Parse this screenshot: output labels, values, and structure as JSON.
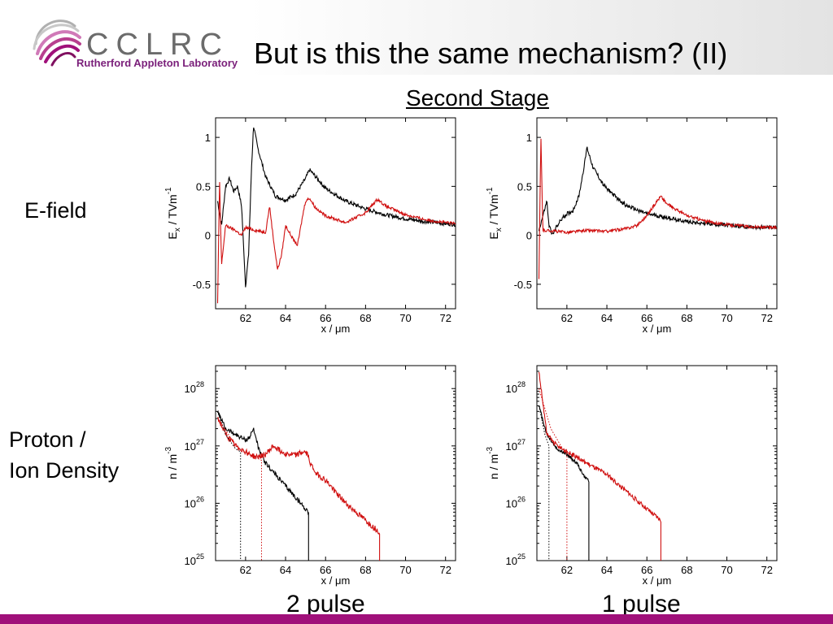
{
  "slide": {
    "title": "But is this the same mechanism? (II)",
    "subtitle": "Second Stage",
    "row_labels": {
      "efield": "E-field",
      "density_line1": "Proton /",
      "density_line2": "Ion Density"
    },
    "col_labels": {
      "left": "2 pulse",
      "right": "1 pulse"
    }
  },
  "logo": {
    "word": "CCLRC",
    "sub": "Rutherford Appleton Laboratory"
  },
  "colors": {
    "series_black": "#000000",
    "series_red": "#d01010",
    "brand": "#7a1f7a",
    "bar": "#a0107a"
  },
  "chart_data": [
    {
      "id": "efield-2pulse",
      "type": "line",
      "xlabel": "x / μm",
      "ylabel": "Ex / TVm-1",
      "xlim": [
        60.5,
        72.5
      ],
      "ylim": [
        -0.75,
        1.2
      ],
      "xticks": [
        62,
        64,
        66,
        68,
        70,
        72
      ],
      "yticks": [
        -0.5,
        0,
        0.5,
        1
      ],
      "series": [
        {
          "color": "black",
          "noise": 0.02,
          "points": [
            [
              60.6,
              0.35
            ],
            [
              60.8,
              0.1
            ],
            [
              61.0,
              0.5
            ],
            [
              61.2,
              0.58
            ],
            [
              61.4,
              0.45
            ],
            [
              61.6,
              0.5
            ],
            [
              61.8,
              0.3
            ],
            [
              62.0,
              -0.52
            ],
            [
              62.15,
              -0.2
            ],
            [
              62.3,
              0.7
            ],
            [
              62.4,
              1.12
            ],
            [
              62.6,
              0.9
            ],
            [
              63.0,
              0.6
            ],
            [
              63.5,
              0.4
            ],
            [
              64.0,
              0.36
            ],
            [
              64.5,
              0.42
            ],
            [
              65.0,
              0.58
            ],
            [
              65.2,
              0.67
            ],
            [
              65.5,
              0.6
            ],
            [
              66.0,
              0.48
            ],
            [
              67.0,
              0.35
            ],
            [
              68.0,
              0.27
            ],
            [
              69.0,
              0.21
            ],
            [
              70.0,
              0.17
            ],
            [
              71.0,
              0.14
            ],
            [
              72.0,
              0.12
            ],
            [
              72.5,
              0.11
            ]
          ]
        },
        {
          "color": "red",
          "noise": 0.015,
          "points": [
            [
              60.6,
              -0.7
            ],
            [
              60.7,
              0.55
            ],
            [
              60.8,
              -0.3
            ],
            [
              61.0,
              0.1
            ],
            [
              61.5,
              0.05
            ],
            [
              61.8,
              0.0
            ],
            [
              62.0,
              0.08
            ],
            [
              62.5,
              0.05
            ],
            [
              63.0,
              0.03
            ],
            [
              63.2,
              0.3
            ],
            [
              63.4,
              -0.05
            ],
            [
              63.6,
              -0.35
            ],
            [
              63.8,
              -0.2
            ],
            [
              64.0,
              0.1
            ],
            [
              64.4,
              -0.05
            ],
            [
              64.6,
              -0.1
            ],
            [
              64.9,
              0.25
            ],
            [
              65.0,
              0.35
            ],
            [
              65.2,
              0.38
            ],
            [
              65.5,
              0.28
            ],
            [
              66.0,
              0.2
            ],
            [
              67.0,
              0.13
            ],
            [
              68.0,
              0.23
            ],
            [
              68.6,
              0.37
            ],
            [
              69.0,
              0.3
            ],
            [
              70.0,
              0.21
            ],
            [
              71.0,
              0.16
            ],
            [
              72.0,
              0.13
            ],
            [
              72.5,
              0.12
            ]
          ]
        }
      ]
    },
    {
      "id": "efield-1pulse",
      "type": "line",
      "xlabel": "x / μm",
      "ylabel": "Ex / TVm-1",
      "xlim": [
        60.5,
        72.5
      ],
      "ylim": [
        -0.75,
        1.2
      ],
      "xticks": [
        62,
        64,
        66,
        68,
        70,
        72
      ],
      "yticks": [
        -0.5,
        0,
        0.5,
        1
      ],
      "series": [
        {
          "color": "black",
          "noise": 0.02,
          "points": [
            [
              60.6,
              0.05
            ],
            [
              60.8,
              0.2
            ],
            [
              61.0,
              0.35
            ],
            [
              61.1,
              0.1
            ],
            [
              61.3,
              0.0
            ],
            [
              61.5,
              0.1
            ],
            [
              61.8,
              0.18
            ],
            [
              62.0,
              0.22
            ],
            [
              62.3,
              0.25
            ],
            [
              62.6,
              0.4
            ],
            [
              62.9,
              0.75
            ],
            [
              63.0,
              0.9
            ],
            [
              63.3,
              0.7
            ],
            [
              63.8,
              0.52
            ],
            [
              64.5,
              0.38
            ],
            [
              65.0,
              0.3
            ],
            [
              66.0,
              0.22
            ],
            [
              67.0,
              0.18
            ],
            [
              68.0,
              0.14
            ],
            [
              69.0,
              0.12
            ],
            [
              70.0,
              0.1
            ],
            [
              71.0,
              0.09
            ],
            [
              72.0,
              0.08
            ],
            [
              72.5,
              0.08
            ]
          ]
        },
        {
          "color": "red",
          "noise": 0.015,
          "points": [
            [
              60.6,
              -0.45
            ],
            [
              60.7,
              1.0
            ],
            [
              60.8,
              0.05
            ],
            [
              61.0,
              0.05
            ],
            [
              62.0,
              0.03
            ],
            [
              63.0,
              0.05
            ],
            [
              64.0,
              0.04
            ],
            [
              65.0,
              0.07
            ],
            [
              65.5,
              0.1
            ],
            [
              66.0,
              0.2
            ],
            [
              66.5,
              0.35
            ],
            [
              66.7,
              0.4
            ],
            [
              67.0,
              0.32
            ],
            [
              68.0,
              0.2
            ],
            [
              69.0,
              0.14
            ],
            [
              70.0,
              0.11
            ],
            [
              71.0,
              0.09
            ],
            [
              72.0,
              0.08
            ],
            [
              72.5,
              0.08
            ]
          ]
        }
      ]
    },
    {
      "id": "density-2pulse",
      "type": "line",
      "yscale": "log",
      "xlabel": "x / μm",
      "ylabel": "n / m-3",
      "xlim": [
        60.5,
        72.5
      ],
      "ylim_log10": [
        25,
        28.4
      ],
      "xticks": [
        62,
        64,
        66,
        68,
        70,
        72
      ],
      "yticks_log10": [
        25,
        26,
        27,
        28
      ],
      "series": [
        {
          "color": "black",
          "noise": 0.04,
          "drop_to_bottom": true,
          "points": [
            [
              60.6,
              27.6
            ],
            [
              61.0,
              27.3
            ],
            [
              61.5,
              27.2
            ],
            [
              62.0,
              27.1
            ],
            [
              62.2,
              27.15
            ],
            [
              62.4,
              27.3
            ],
            [
              62.7,
              26.9
            ],
            [
              63.0,
              26.7
            ],
            [
              63.5,
              26.5
            ],
            [
              64.0,
              26.3
            ],
            [
              64.5,
              26.1
            ],
            [
              65.0,
              25.9
            ],
            [
              65.15,
              25.85
            ]
          ]
        },
        {
          "color": "red",
          "noise": 0.05,
          "drop_to_bottom": true,
          "points": [
            [
              60.6,
              27.5
            ],
            [
              61.0,
              27.2
            ],
            [
              61.5,
              27.0
            ],
            [
              62.0,
              26.9
            ],
            [
              62.5,
              26.8
            ],
            [
              63.0,
              26.85
            ],
            [
              63.4,
              27.0
            ],
            [
              63.8,
              26.9
            ],
            [
              64.2,
              26.85
            ],
            [
              64.6,
              26.85
            ],
            [
              64.9,
              26.9
            ],
            [
              65.1,
              26.85
            ],
            [
              65.3,
              26.65
            ],
            [
              65.6,
              26.5
            ],
            [
              66.0,
              26.4
            ],
            [
              66.5,
              26.2
            ],
            [
              67.0,
              26.0
            ],
            [
              67.5,
              25.85
            ],
            [
              68.0,
              25.7
            ],
            [
              68.5,
              25.55
            ],
            [
              68.7,
              25.5
            ]
          ]
        },
        {
          "color": "black",
          "dotted": true,
          "drop_to_bottom": true,
          "points": [
            [
              60.6,
              27.6
            ],
            [
              61.0,
              27.2
            ],
            [
              61.5,
              26.95
            ],
            [
              61.75,
              26.9
            ]
          ]
        },
        {
          "color": "red",
          "dotted": true,
          "drop_to_bottom": true,
          "points": [
            [
              60.6,
              27.5
            ],
            [
              61.5,
              27.0
            ],
            [
              62.2,
              26.85
            ],
            [
              62.8,
              26.75
            ]
          ]
        }
      ]
    },
    {
      "id": "density-1pulse",
      "type": "line",
      "yscale": "log",
      "xlabel": "x / μm",
      "ylabel": "n / m-3",
      "xlim": [
        60.5,
        72.5
      ],
      "ylim_log10": [
        25,
        28.4
      ],
      "xticks": [
        62,
        64,
        66,
        68,
        70,
        72
      ],
      "yticks_log10": [
        25,
        26,
        27,
        28
      ],
      "series": [
        {
          "color": "black",
          "noise": 0.03,
          "drop_to_bottom": true,
          "points": [
            [
              60.6,
              27.7
            ],
            [
              61.0,
              27.2
            ],
            [
              61.5,
              26.95
            ],
            [
              62.0,
              26.85
            ],
            [
              62.5,
              26.7
            ],
            [
              62.9,
              26.45
            ],
            [
              63.1,
              26.4
            ]
          ]
        },
        {
          "color": "red",
          "noise": 0.04,
          "drop_to_bottom": true,
          "points": [
            [
              60.6,
              28.3
            ],
            [
              61.0,
              27.2
            ],
            [
              61.5,
              27.0
            ],
            [
              62.0,
              26.9
            ],
            [
              62.5,
              26.8
            ],
            [
              63.0,
              26.7
            ],
            [
              64.0,
              26.5
            ],
            [
              65.0,
              26.2
            ],
            [
              66.0,
              25.9
            ],
            [
              66.7,
              25.7
            ]
          ]
        },
        {
          "color": "black",
          "dotted": true,
          "drop_to_bottom": true,
          "points": [
            [
              60.6,
              27.7
            ],
            [
              60.9,
              27.2
            ],
            [
              61.1,
              27.0
            ]
          ]
        },
        {
          "color": "red",
          "dotted": true,
          "drop_to_bottom": true,
          "points": [
            [
              60.6,
              28.0
            ],
            [
              61.2,
              27.3
            ],
            [
              61.7,
              27.0
            ],
            [
              62.0,
              26.85
            ]
          ]
        }
      ]
    }
  ]
}
